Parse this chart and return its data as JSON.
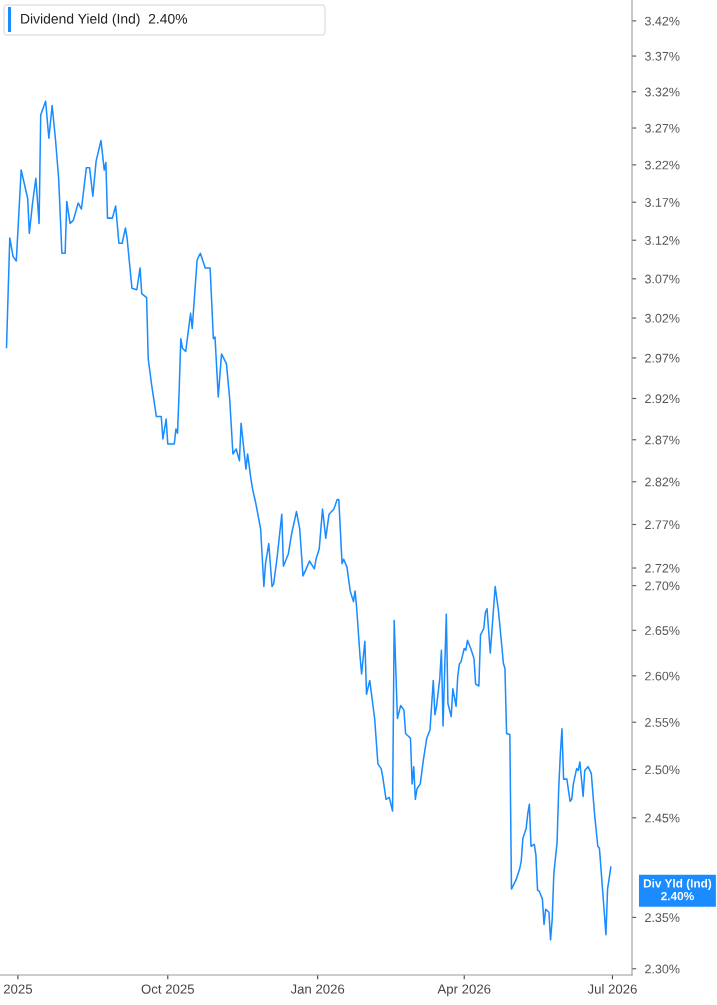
{
  "chart_data": {
    "type": "line",
    "title": "Dividend Yield (Ind)  2.40%",
    "x": [
      "2025-06-24",
      "2025-06-26",
      "2025-06-28",
      "2025-06-30",
      "2025-07-03",
      "2025-07-07",
      "2025-07-08",
      "2025-07-10",
      "2025-07-12",
      "2025-07-14",
      "2025-07-15",
      "2025-07-18",
      "2025-07-20",
      "2025-07-22",
      "2025-07-24",
      "2025-07-26",
      "2025-07-28",
      "2025-07-30",
      "2025-07-31",
      "2025-08-02",
      "2025-08-04",
      "2025-08-07",
      "2025-08-09",
      "2025-08-12",
      "2025-08-14",
      "2025-08-16",
      "2025-08-18",
      "2025-08-21",
      "2025-08-23",
      "2025-08-24",
      "2025-08-25",
      "2025-08-28",
      "2025-08-30",
      "2025-09-01",
      "2025-09-03",
      "2025-09-05",
      "2025-09-06",
      "2025-09-09",
      "2025-09-12",
      "2025-09-14",
      "2025-09-15",
      "2025-09-18",
      "2025-09-19",
      "2025-09-21",
      "2025-09-24",
      "2025-09-27",
      "2025-09-28",
      "2025-09-30",
      "2025-10-01",
      "2025-10-05",
      "2025-10-06",
      "2025-10-07",
      "2025-10-08",
      "2025-10-09",
      "2025-10-10",
      "2025-10-12",
      "2025-10-15",
      "2025-10-16",
      "2025-10-19",
      "2025-10-20",
      "2025-10-21",
      "2025-10-24",
      "2025-10-27",
      "2025-10-29",
      "2025-10-30",
      "2025-11-01",
      "2025-11-03",
      "2025-11-06",
      "2025-11-08",
      "2025-11-10",
      "2025-11-12",
      "2025-11-14",
      "2025-11-15",
      "2025-11-18",
      "2025-11-19",
      "2025-11-21",
      "2025-11-22",
      "2025-11-24",
      "2025-11-27",
      "2025-11-29",
      "2025-11-30",
      "2025-12-02",
      "2025-12-04",
      "2025-12-05",
      "2025-12-07",
      "2025-12-10",
      "2025-12-11",
      "2025-12-14",
      "2025-12-16",
      "2025-12-19",
      "2025-12-21",
      "2025-12-23",
      "2025-12-25",
      "2025-12-27",
      "2025-12-30",
      "2025-12-31",
      "2026-01-02",
      "2026-01-04",
      "2026-01-06",
      "2026-01-08",
      "2026-01-11",
      "2026-01-13",
      "2026-01-14",
      "2026-01-16",
      "2026-01-17",
      "2026-01-19",
      "2026-01-21",
      "2026-01-23",
      "2026-01-24",
      "2026-01-25",
      "2026-01-27",
      "2026-01-28",
      "2026-01-30",
      "2026-01-31",
      "2026-02-02",
      "2026-02-05",
      "2026-02-07",
      "2026-02-09",
      "2026-02-10",
      "2026-02-12",
      "2026-02-14",
      "2026-02-16",
      "2026-02-17",
      "2026-02-19",
      "2026-02-21",
      "2026-02-23",
      "2026-02-24",
      "2026-02-27",
      "2026-02-28",
      "2026-03-01",
      "2026-03-02",
      "2026-03-03",
      "2026-03-05",
      "2026-03-07",
      "2026-03-09",
      "2026-03-11",
      "2026-03-13",
      "2026-03-14",
      "2026-03-15",
      "2026-03-17",
      "2026-03-18",
      "2026-03-19",
      "2026-03-21",
      "2026-03-22",
      "2026-03-24",
      "2026-03-25",
      "2026-03-27",
      "2026-03-28",
      "2026-03-29",
      "2026-03-30",
      "2026-04-01",
      "2026-04-02",
      "2026-04-03",
      "2026-04-05",
      "2026-04-07",
      "2026-04-08",
      "2026-04-10",
      "2026-04-11",
      "2026-04-13",
      "2026-04-14",
      "2026-04-15",
      "2026-04-17",
      "2026-04-20",
      "2026-04-22",
      "2026-04-24",
      "2026-04-25",
      "2026-04-26",
      "2026-04-27",
      "2026-04-29",
      "2026-04-30",
      "2026-05-03",
      "2026-05-05",
      "2026-05-06",
      "2026-05-07",
      "2026-05-09",
      "2026-05-10",
      "2026-05-11",
      "2026-05-12",
      "2026-05-14",
      "2026-05-15",
      "2026-05-16",
      "2026-05-17",
      "2026-05-19",
      "2026-05-20",
      "2026-05-21",
      "2026-05-23",
      "2026-05-24",
      "2026-05-25",
      "2026-05-26",
      "2026-05-28",
      "2026-05-29",
      "2026-05-30",
      "2026-05-31",
      "2026-06-01",
      "2026-06-03",
      "2026-06-05",
      "2026-06-06",
      "2026-06-07",
      "2026-06-09",
      "2026-06-10",
      "2026-06-11",
      "2026-06-13",
      "2026-06-14",
      "2026-06-16",
      "2026-06-18",
      "2026-06-20",
      "2026-06-22",
      "2026-06-23",
      "2026-06-25",
      "2026-06-27",
      "2026-06-28",
      "2026-06-30"
    ],
    "series": [
      {
        "color": "#1a8cff",
        "values": [
          2.983,
          3.123,
          3.099,
          3.093,
          3.213,
          3.175,
          3.129,
          3.169,
          3.202,
          3.142,
          3.288,
          3.307,
          3.256,
          3.301,
          3.256,
          3.202,
          3.103,
          3.103,
          3.171,
          3.142,
          3.146,
          3.169,
          3.161,
          3.216,
          3.216,
          3.178,
          3.225,
          3.253,
          3.213,
          3.223,
          3.149,
          3.149,
          3.165,
          3.116,
          3.116,
          3.136,
          3.123,
          3.058,
          3.056,
          3.084,
          3.051,
          3.046,
          2.969,
          2.938,
          2.898,
          2.898,
          2.871,
          2.895,
          2.865,
          2.865,
          2.883,
          2.878,
          2.93,
          2.994,
          2.982,
          2.978,
          3.026,
          3.007,
          3.094,
          3.099,
          3.103,
          3.084,
          3.084,
          2.994,
          2.996,
          2.922,
          2.975,
          2.963,
          2.92,
          2.853,
          2.859,
          2.845,
          2.89,
          2.835,
          2.853,
          2.824,
          2.812,
          2.795,
          2.765,
          2.699,
          2.725,
          2.748,
          2.699,
          2.702,
          2.73,
          2.782,
          2.722,
          2.736,
          2.759,
          2.785,
          2.765,
          2.711,
          2.719,
          2.728,
          2.719,
          2.73,
          2.742,
          2.788,
          2.754,
          2.782,
          2.788,
          2.799,
          2.799,
          2.725,
          2.73,
          2.721,
          2.694,
          2.682,
          2.694,
          2.674,
          2.622,
          2.602,
          2.638,
          2.58,
          2.595,
          2.554,
          2.506,
          2.501,
          2.492,
          2.469,
          2.471,
          2.457,
          2.661,
          2.554,
          2.568,
          2.563,
          2.538,
          2.533,
          2.485,
          2.503,
          2.469,
          2.48,
          2.485,
          2.511,
          2.533,
          2.542,
          2.595,
          2.558,
          2.567,
          2.597,
          2.628,
          2.546,
          2.668,
          2.57,
          2.556,
          2.586,
          2.567,
          2.599,
          2.613,
          2.615,
          2.63,
          2.628,
          2.639,
          2.63,
          2.619,
          2.591,
          2.589,
          2.645,
          2.652,
          2.67,
          2.674,
          2.625,
          2.699,
          2.672,
          2.634,
          2.614,
          2.608,
          2.538,
          2.537,
          2.378,
          2.388,
          2.398,
          2.406,
          2.429,
          2.439,
          2.454,
          2.464,
          2.421,
          2.423,
          2.412,
          2.377,
          2.376,
          2.368,
          2.343,
          2.358,
          2.355,
          2.328,
          2.348,
          2.393,
          2.425,
          2.48,
          2.516,
          2.543,
          2.49,
          2.49,
          2.467,
          2.469,
          2.485,
          2.501,
          2.499,
          2.508,
          2.472,
          2.499,
          2.503,
          2.496,
          2.454,
          2.421,
          2.419,
          2.376,
          2.333,
          2.378,
          2.4
        ]
      }
    ],
    "log": "y",
    "xlim": [
      "2025-06-20",
      "2026-07-13"
    ],
    "xticks": [
      {
        "value": "2025-07-01",
        "label": "2025"
      },
      {
        "value": "2025-10-01",
        "label": "Oct 2025"
      },
      {
        "value": "2026-01-01",
        "label": "Jan 2026"
      },
      {
        "value": "2026-04-01",
        "label": "Apr 2026"
      },
      {
        "value": "2026-07-01",
        "label": "Jul 2026"
      }
    ],
    "ylim": [
      2.294,
      3.45
    ],
    "yticks": [
      {
        "value": 2.3,
        "label": "2.30%"
      },
      {
        "value": 2.35,
        "label": "2.35%"
      },
      {
        "value": 2.45,
        "label": "2.45%"
      },
      {
        "value": 2.5,
        "label": "2.50%"
      },
      {
        "value": 2.55,
        "label": "2.55%"
      },
      {
        "value": 2.6,
        "label": "2.60%"
      },
      {
        "value": 2.65,
        "label": "2.65%"
      },
      {
        "value": 2.7,
        "label": "2.70%"
      },
      {
        "value": 2.72,
        "label": "2.72%"
      },
      {
        "value": 2.77,
        "label": "2.77%"
      },
      {
        "value": 2.82,
        "label": "2.82%"
      },
      {
        "value": 2.87,
        "label": "2.87%"
      },
      {
        "value": 2.92,
        "label": "2.92%"
      },
      {
        "value": 2.97,
        "label": "2.97%"
      },
      {
        "value": 3.02,
        "label": "3.02%"
      },
      {
        "value": 3.07,
        "label": "3.07%"
      },
      {
        "value": 3.12,
        "label": "3.12%"
      },
      {
        "value": 3.17,
        "label": "3.17%"
      },
      {
        "value": 3.22,
        "label": "3.22%"
      },
      {
        "value": 3.27,
        "label": "3.27%"
      },
      {
        "value": 3.32,
        "label": "3.32%"
      },
      {
        "value": 3.37,
        "label": "3.37%"
      },
      {
        "value": 3.42,
        "label": "3.42%"
      }
    ],
    "annotations": [
      "Div Yld (Ind)\n2.40%"
    ],
    "grid": false,
    "marker": "none",
    "line_style": "solid"
  }
}
